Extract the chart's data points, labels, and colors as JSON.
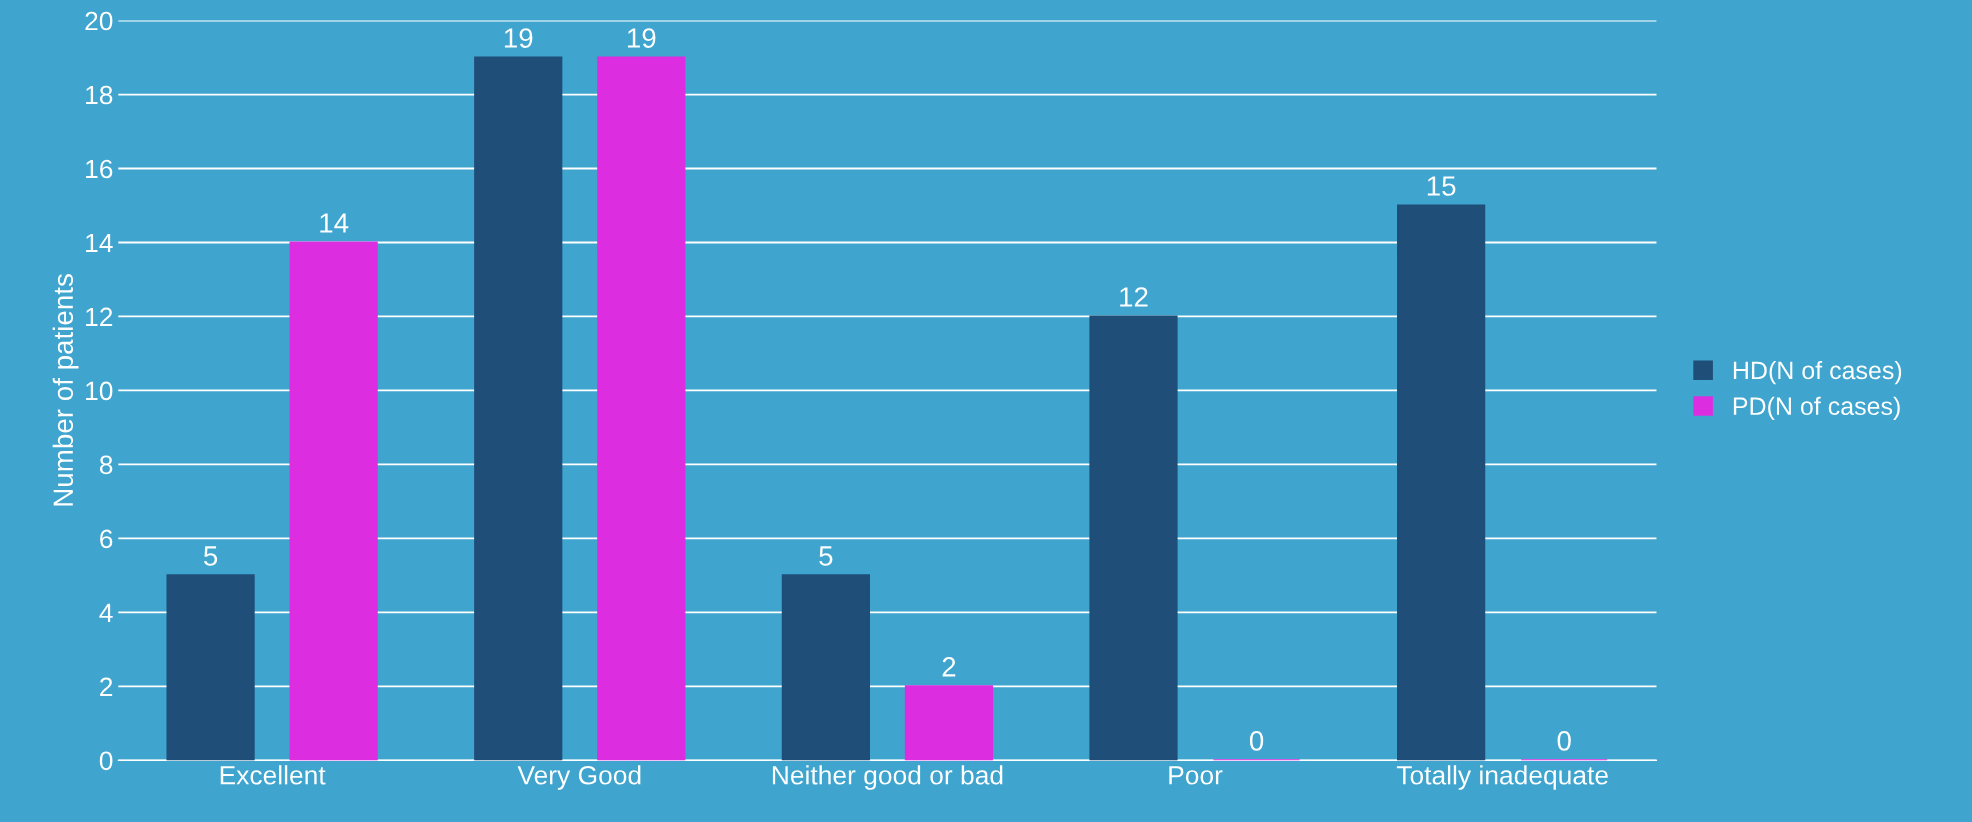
{
  "chart_data": {
    "type": "bar",
    "ylabel": "Number of patients",
    "categories": [
      "Excellent",
      "Very Good",
      "Neither good or bad",
      "Poor",
      "Totally inadequate"
    ],
    "series": [
      {
        "name": "HD(N of cases)",
        "color": "#1f4e79",
        "values": [
          5,
          19,
          5,
          12,
          15
        ]
      },
      {
        "name": "PD(N of cases)",
        "color": "#dc2ee0",
        "values": [
          14,
          19,
          2,
          0,
          0
        ]
      }
    ],
    "ylim": [
      0,
      20
    ],
    "yticks": [
      0,
      2,
      4,
      6,
      8,
      10,
      12,
      14,
      16,
      18,
      20
    ],
    "grid": "y",
    "legend": "right",
    "data_labels": true
  }
}
